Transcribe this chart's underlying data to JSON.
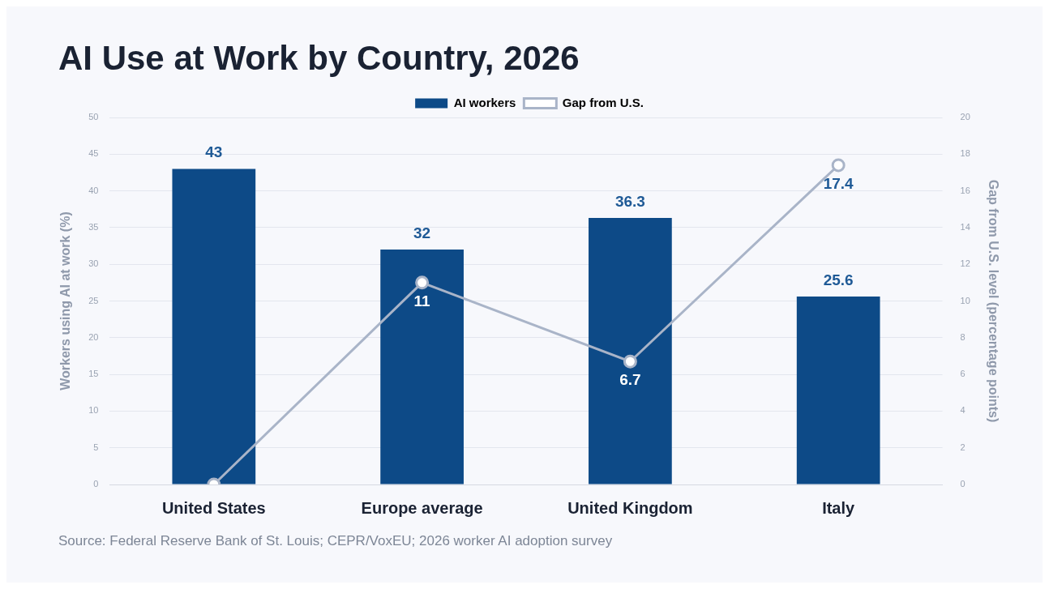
{
  "chart_data": {
    "type": "bar",
    "title": "AI Use at Work by Country, 2026",
    "ylabel": "Workers using AI at work (%)",
    "y2label": "Gap from U.S. level (percentage points)",
    "categories": [
      "United States",
      "Europe average",
      "United Kingdom",
      "Italy"
    ],
    "series": [
      {
        "name": "AI workers",
        "color": "#0d4a87",
        "values": [
          43,
          32,
          36.3,
          25.6
        ],
        "value_labels": [
          "43",
          "32",
          "36.3",
          "25.6"
        ]
      },
      {
        "name": "Gap from U.S.",
        "type": "line",
        "axis": "y2",
        "color": "#a9b4c8",
        "values": [
          0,
          11,
          6.7,
          17.4
        ],
        "value_labels": [
          null,
          "11",
          "6.7",
          "17.4"
        ]
      }
    ],
    "ylim": [
      0,
      50
    ],
    "yticks": [
      0,
      5,
      10,
      15,
      20,
      25,
      30,
      35,
      40,
      45,
      50
    ],
    "y2lim": [
      0,
      20
    ],
    "y2ticks": [
      0,
      2,
      4,
      6,
      8,
      10,
      12,
      14,
      16,
      18,
      20
    ],
    "grid": "y",
    "legend": "top",
    "marker": "circle",
    "line_style": "solid",
    "annotations": [
      "Source: Federal Reserve Bank of St. Louis; CEPR/VoxEU; 2026 worker AI adoption survey"
    ]
  }
}
